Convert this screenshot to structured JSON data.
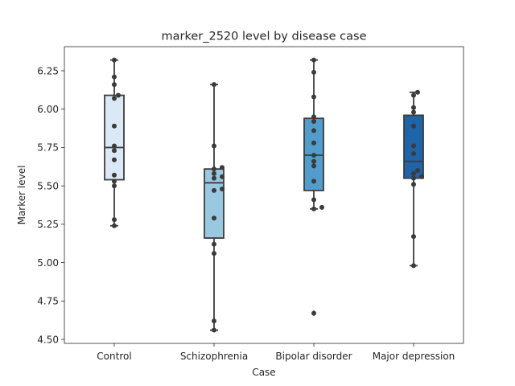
{
  "chart_data": {
    "type": "box",
    "title": "marker_2520 level by disease case",
    "xlabel": "Case",
    "ylabel": "Marker level",
    "ylim": [
      4.5,
      6.4
    ],
    "yticks": [
      "4.50",
      "4.75",
      "5.00",
      "5.25",
      "5.50",
      "5.75",
      "6.00",
      "6.25"
    ],
    "grid": false,
    "legend": "none",
    "categories": [
      "Control",
      "Schizophrenia",
      "Bipolar disorder",
      "Major depression"
    ],
    "colors": [
      "#dbe9f6",
      "#9ac8e0",
      "#529dcc",
      "#1f63a8"
    ],
    "boxes": [
      {
        "whisker_low": 5.24,
        "q1": 5.54,
        "median": 5.75,
        "q3": 6.09,
        "whisker_high": 6.32,
        "outliers": []
      },
      {
        "whisker_low": 4.56,
        "q1": 5.16,
        "median": 5.52,
        "q3": 5.61,
        "whisker_high": 6.16,
        "outliers": []
      },
      {
        "whisker_low": 5.35,
        "q1": 5.47,
        "median": 5.7,
        "q3": 5.94,
        "whisker_high": 6.32,
        "outliers": [
          4.67
        ]
      },
      {
        "whisker_low": 4.98,
        "q1": 5.55,
        "median": 5.66,
        "q3": 5.96,
        "whisker_high": 6.11,
        "outliers": []
      }
    ],
    "points": [
      [
        6.32,
        6.21,
        6.16,
        6.09,
        6.07,
        5.89,
        5.76,
        5.73,
        5.67,
        5.57,
        5.53,
        5.5,
        5.28,
        5.24
      ],
      [
        6.16,
        5.76,
        5.62,
        5.61,
        5.58,
        5.56,
        5.55,
        5.48,
        5.47,
        5.29,
        5.12,
        5.06,
        4.62,
        4.56
      ],
      [
        6.32,
        6.24,
        6.08,
        5.95,
        5.92,
        5.86,
        5.78,
        5.7,
        5.66,
        5.63,
        5.53,
        5.41,
        5.36,
        5.35,
        4.67
      ],
      [
        6.11,
        6.09,
        6.01,
        5.98,
        5.89,
        5.76,
        5.71,
        5.6,
        5.58,
        5.56,
        5.55,
        5.51,
        5.17,
        4.98
      ]
    ]
  }
}
